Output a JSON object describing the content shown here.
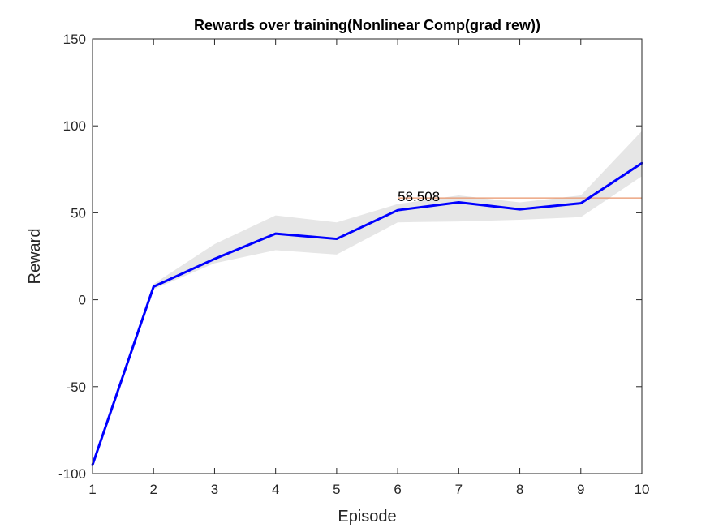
{
  "chart_data": {
    "type": "line",
    "title": "Rewards over training(Nonlinear Comp(grad rew))",
    "xlabel": "Episode",
    "ylabel": "Reward",
    "xlim": [
      1,
      10
    ],
    "ylim": [
      -100,
      150
    ],
    "xticks": [
      1,
      2,
      3,
      4,
      5,
      6,
      7,
      8,
      9,
      10
    ],
    "yticks": [
      -100,
      -50,
      0,
      50,
      100,
      150
    ],
    "x": [
      1,
      2,
      3,
      4,
      5,
      6,
      7,
      8,
      9,
      10
    ],
    "series": [
      {
        "values": [
          -95,
          7.5,
          23.5,
          38,
          35,
          51.5,
          56,
          52,
          55.5,
          78.5
        ],
        "color": "#0000ff"
      }
    ],
    "band": {
      "upper": [
        -94,
        9,
        32,
        48.5,
        44.5,
        55,
        60,
        56,
        60,
        97
      ],
      "lower": [
        -96,
        6,
        21,
        28.5,
        26,
        44.5,
        45,
        46,
        47.5,
        71
      ],
      "color": "#e6e6e6"
    },
    "reference_line": {
      "value": 58.508,
      "label": "58.508",
      "label_x": 6,
      "from_x": 6,
      "to_x": 10,
      "color": "#e8946a"
    },
    "grid": false,
    "box": true
  }
}
